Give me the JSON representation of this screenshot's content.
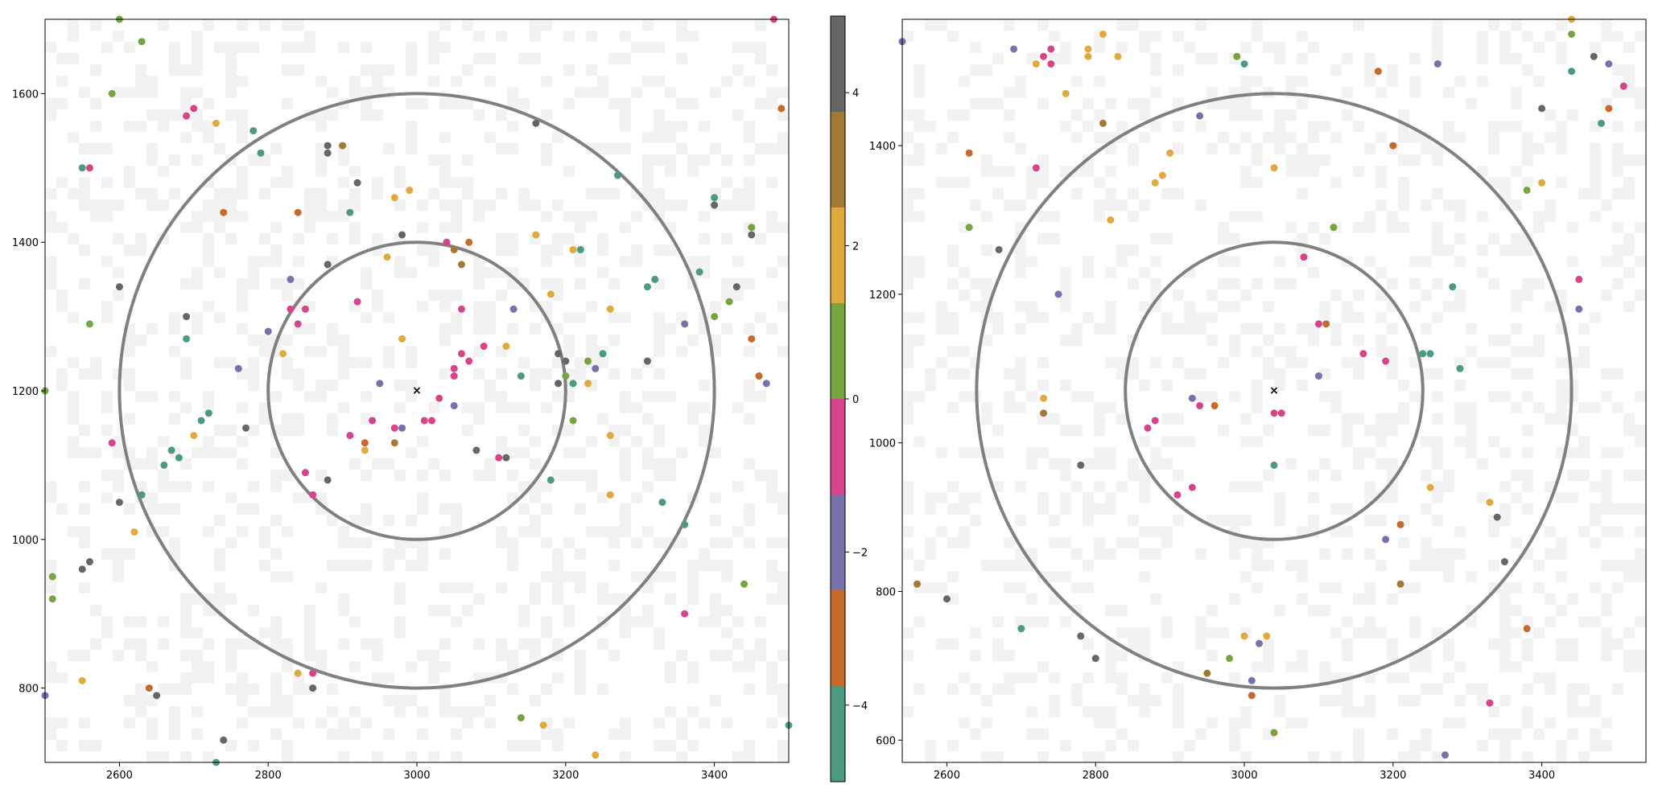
{
  "colors": {
    "background": "#ffffff",
    "raster_cell": "#f2f2f2",
    "circle": "#808080",
    "axis": "#000000"
  },
  "chart_data": [
    {
      "type": "scatter",
      "name": "left-panel",
      "xlim": [
        2500,
        3500
      ],
      "ylim": [
        700,
        1700
      ],
      "xticks": [
        2600,
        2800,
        3000,
        3200,
        3400
      ],
      "yticks": [
        800,
        1000,
        1200,
        1400,
        1600
      ],
      "center": [
        3000,
        1200
      ],
      "center_marker": "×",
      "circles_radius": [
        200,
        400
      ],
      "points": [
        [
          2600,
          1700,
          1
        ],
        [
          2630,
          1670,
          0.5
        ],
        [
          2590,
          1600,
          0.5
        ],
        [
          2690,
          1570,
          -0.5
        ],
        [
          2700,
          1580,
          -0.5
        ],
        [
          2730,
          1560,
          2
        ],
        [
          2550,
          1500,
          -4
        ],
        [
          2560,
          1500,
          -0.5
        ],
        [
          2780,
          1550,
          -4
        ],
        [
          2790,
          1520,
          -4
        ],
        [
          2880,
          1530,
          4
        ],
        [
          2880,
          1520,
          4
        ],
        [
          2900,
          1530,
          3
        ],
        [
          2920,
          1480,
          4
        ],
        [
          2970,
          1460,
          2
        ],
        [
          2990,
          1470,
          2
        ],
        [
          2910,
          1440,
          -4
        ],
        [
          2740,
          1440,
          -3
        ],
        [
          2840,
          1440,
          -3
        ],
        [
          3160,
          1560,
          4
        ],
        [
          3270,
          1490,
          -4
        ],
        [
          3400,
          1460,
          -4
        ],
        [
          3400,
          1450,
          4
        ],
        [
          3450,
          1420,
          0.5
        ],
        [
          3450,
          1410,
          4
        ],
        [
          2600,
          1340,
          4
        ],
        [
          2560,
          1290,
          0.5
        ],
        [
          2690,
          1300,
          4
        ],
        [
          2690,
          1270,
          -4
        ],
        [
          2820,
          1250,
          2
        ],
        [
          2830,
          1350,
          -2
        ],
        [
          2880,
          1370,
          4
        ],
        [
          2980,
          1410,
          4
        ],
        [
          2960,
          1380,
          2
        ],
        [
          3040,
          1400,
          -0.5
        ],
        [
          3050,
          1390,
          3
        ],
        [
          3070,
          1400,
          -3
        ],
        [
          3060,
          1370,
          3
        ],
        [
          3160,
          1410,
          2
        ],
        [
          3210,
          1390,
          2
        ],
        [
          3220,
          1390,
          -4
        ],
        [
          3180,
          1330,
          2
        ],
        [
          3260,
          1310,
          2
        ],
        [
          3310,
          1340,
          -4
        ],
        [
          3320,
          1350,
          -4
        ],
        [
          3380,
          1360,
          -4
        ],
        [
          3430,
          1340,
          4
        ],
        [
          3420,
          1320,
          0.5
        ],
        [
          3400,
          1300,
          0.5
        ],
        [
          3360,
          1290,
          -2
        ],
        [
          3450,
          1270,
          -3
        ],
        [
          3460,
          1220,
          -3
        ],
        [
          3470,
          1210,
          -2
        ],
        [
          2830,
          1310,
          -0.5
        ],
        [
          2850,
          1310,
          -0.5
        ],
        [
          2840,
          1290,
          -0.5
        ],
        [
          2800,
          1280,
          -2
        ],
        [
          2760,
          1230,
          -2
        ],
        [
          2920,
          1320,
          -0.5
        ],
        [
          3060,
          1310,
          -0.5
        ],
        [
          3130,
          1310,
          -2
        ],
        [
          2980,
          1270,
          2
        ],
        [
          3060,
          1250,
          -0.5
        ],
        [
          3090,
          1260,
          -0.5
        ],
        [
          3120,
          1260,
          2
        ],
        [
          3070,
          1240,
          -0.5
        ],
        [
          3050,
          1230,
          -0.5
        ],
        [
          3050,
          1220,
          -0.5
        ],
        [
          3030,
          1190,
          -0.5
        ],
        [
          3050,
          1180,
          -2
        ],
        [
          3140,
          1220,
          -4
        ],
        [
          2950,
          1210,
          -2
        ],
        [
          2940,
          1160,
          -0.5
        ],
        [
          2910,
          1140,
          -0.5
        ],
        [
          2970,
          1150,
          -0.5
        ],
        [
          2980,
          1150,
          -2
        ],
        [
          3010,
          1160,
          -0.5
        ],
        [
          3020,
          1160,
          -0.5
        ],
        [
          2930,
          1130,
          -3
        ],
        [
          2930,
          1120,
          2
        ],
        [
          2970,
          1130,
          3
        ],
        [
          3190,
          1250,
          4
        ],
        [
          3200,
          1240,
          4
        ],
        [
          3200,
          1220,
          0.5
        ],
        [
          3190,
          1210,
          4
        ],
        [
          3210,
          1210,
          -4
        ],
        [
          3230,
          1240,
          0.5
        ],
        [
          3250,
          1250,
          -4
        ],
        [
          3240,
          1230,
          -2
        ],
        [
          3230,
          1210,
          2
        ],
        [
          3210,
          1160,
          0.5
        ],
        [
          3310,
          1240,
          4
        ],
        [
          2500,
          1200,
          0.5
        ],
        [
          2720,
          1170,
          -4
        ],
        [
          2710,
          1160,
          -4
        ],
        [
          2700,
          1140,
          2
        ],
        [
          2770,
          1150,
          4
        ],
        [
          2590,
          1130,
          -0.5
        ],
        [
          2670,
          1120,
          -4
        ],
        [
          2680,
          1110,
          -4
        ],
        [
          2660,
          1100,
          -4
        ],
        [
          2850,
          1090,
          -0.5
        ],
        [
          2880,
          1080,
          4
        ],
        [
          2860,
          1060,
          -0.5
        ],
        [
          3080,
          1120,
          4
        ],
        [
          3110,
          1110,
          -0.5
        ],
        [
          3120,
          1110,
          4
        ],
        [
          3180,
          1080,
          -4
        ],
        [
          3260,
          1140,
          2
        ],
        [
          3260,
          1060,
          2
        ],
        [
          2630,
          1060,
          -4
        ],
        [
          2600,
          1050,
          4
        ],
        [
          2620,
          1010,
          2
        ],
        [
          3330,
          1050,
          -4
        ],
        [
          3360,
          1020,
          -4
        ],
        [
          2510,
          950,
          0.5
        ],
        [
          2550,
          960,
          4
        ],
        [
          2560,
          970,
          4
        ],
        [
          2510,
          920,
          1
        ],
        [
          3440,
          940,
          0.5
        ],
        [
          3360,
          900,
          -0.5
        ],
        [
          2550,
          810,
          2
        ],
        [
          2640,
          800,
          -3
        ],
        [
          2650,
          790,
          4
        ],
        [
          2500,
          790,
          -2
        ],
        [
          2840,
          820,
          2
        ],
        [
          2860,
          820,
          -0.5
        ],
        [
          2860,
          800,
          4
        ],
        [
          2740,
          730,
          4
        ],
        [
          2730,
          700,
          -4
        ],
        [
          3140,
          760,
          0.5
        ],
        [
          3170,
          750,
          2
        ],
        [
          3240,
          710,
          2
        ],
        [
          3500,
          750,
          -4
        ],
        [
          3490,
          1580,
          -3
        ],
        [
          3480,
          1700,
          -0.5
        ]
      ]
    },
    {
      "type": "scatter",
      "name": "right-panel",
      "xlim": [
        2540,
        3540
      ],
      "ylim": [
        570,
        1570
      ],
      "xticks": [
        2600,
        2800,
        3000,
        3200,
        3400
      ],
      "yticks": [
        600,
        800,
        1000,
        1200,
        1400
      ],
      "center": [
        3040,
        1070
      ],
      "center_marker": "×",
      "circles_radius": [
        200,
        400
      ],
      "points": [
        [
          2540,
          1540,
          -2
        ],
        [
          2690,
          1530,
          -2
        ],
        [
          2730,
          1520,
          -0.5
        ],
        [
          2740,
          1530,
          -0.5
        ],
        [
          2740,
          1510,
          -0.5
        ],
        [
          2720,
          1510,
          2
        ],
        [
          2790,
          1530,
          2
        ],
        [
          2790,
          1520,
          2
        ],
        [
          2810,
          1550,
          2
        ],
        [
          2830,
          1520,
          2
        ],
        [
          2990,
          1520,
          0.5
        ],
        [
          3000,
          1510,
          -4
        ],
        [
          3180,
          1500,
          -3
        ],
        [
          3260,
          1510,
          -2
        ],
        [
          3470,
          1520,
          4
        ],
        [
          3490,
          1510,
          -2
        ],
        [
          3510,
          1480,
          -0.5
        ],
        [
          3440,
          1570,
          2
        ],
        [
          3440,
          1550,
          0.5
        ],
        [
          3440,
          1500,
          -4
        ],
        [
          3400,
          1450,
          4
        ],
        [
          3490,
          1450,
          -3
        ],
        [
          3480,
          1430,
          -4
        ],
        [
          2760,
          1470,
          2
        ],
        [
          2940,
          1440,
          -2
        ],
        [
          2810,
          1430,
          3
        ],
        [
          2630,
          1390,
          -3
        ],
        [
          2720,
          1370,
          -0.5
        ],
        [
          2900,
          1390,
          2
        ],
        [
          2890,
          1360,
          2
        ],
        [
          2880,
          1350,
          2
        ],
        [
          3040,
          1370,
          2
        ],
        [
          3200,
          1400,
          -3
        ],
        [
          3400,
          1350,
          2
        ],
        [
          3380,
          1340,
          0.5
        ],
        [
          2630,
          1290,
          0.5
        ],
        [
          2670,
          1260,
          4
        ],
        [
          2820,
          1300,
          2
        ],
        [
          3120,
          1290,
          0.5
        ],
        [
          3080,
          1250,
          -0.5
        ],
        [
          3280,
          1210,
          -4
        ],
        [
          3450,
          1220,
          -0.5
        ],
        [
          3450,
          1180,
          -2
        ],
        [
          2750,
          1200,
          -2
        ],
        [
          3100,
          1160,
          -0.5
        ],
        [
          3110,
          1160,
          -3
        ],
        [
          3160,
          1120,
          -0.5
        ],
        [
          3190,
          1110,
          -0.5
        ],
        [
          3240,
          1120,
          -4
        ],
        [
          3250,
          1120,
          -4
        ],
        [
          3290,
          1100,
          -4
        ],
        [
          3100,
          1090,
          -2
        ],
        [
          2730,
          1060,
          2
        ],
        [
          2730,
          1040,
          3
        ],
        [
          2930,
          1060,
          -2
        ],
        [
          2940,
          1050,
          -0.5
        ],
        [
          2960,
          1050,
          -3
        ],
        [
          2880,
          1030,
          -0.5
        ],
        [
          2870,
          1020,
          -0.5
        ],
        [
          3040,
          1040,
          -0.5
        ],
        [
          3050,
          1040,
          -0.5
        ],
        [
          2780,
          970,
          4
        ],
        [
          3040,
          970,
          -4
        ],
        [
          2910,
          930,
          -0.5
        ],
        [
          2930,
          940,
          -0.5
        ],
        [
          3250,
          940,
          2
        ],
        [
          3330,
          920,
          2
        ],
        [
          3340,
          900,
          4
        ],
        [
          3210,
          890,
          -3
        ],
        [
          3190,
          870,
          -2
        ],
        [
          3350,
          840,
          4
        ],
        [
          2560,
          810,
          3
        ],
        [
          2600,
          790,
          4
        ],
        [
          3210,
          810,
          3
        ],
        [
          3380,
          750,
          -3
        ],
        [
          2700,
          750,
          -4
        ],
        [
          2780,
          740,
          4
        ],
        [
          2800,
          710,
          4
        ],
        [
          3000,
          740,
          2
        ],
        [
          3020,
          730,
          -2
        ],
        [
          3030,
          740,
          2
        ],
        [
          2980,
          710,
          0.5
        ],
        [
          2950,
          690,
          3
        ],
        [
          3010,
          680,
          -2
        ],
        [
          3010,
          660,
          -3
        ],
        [
          3330,
          650,
          -0.5
        ],
        [
          3040,
          610,
          0.5
        ],
        [
          3270,
          580,
          -2
        ]
      ]
    }
  ],
  "colorbar": {
    "vmin": -5,
    "vmax": 5,
    "bands": [
      {
        "from": -5,
        "to": -3.75,
        "color": "#4c9a80"
      },
      {
        "from": -3.75,
        "to": -2.5,
        "color": "#c8692c"
      },
      {
        "from": -2.5,
        "to": -1.25,
        "color": "#7672ab"
      },
      {
        "from": -1.25,
        "to": 0,
        "color": "#d6448a"
      },
      {
        "from": 0,
        "to": 1.25,
        "color": "#76a441"
      },
      {
        "from": 1.25,
        "to": 2.5,
        "color": "#e1aa3c"
      },
      {
        "from": 2.5,
        "to": 3.75,
        "color": "#a47936"
      },
      {
        "from": 3.75,
        "to": 5,
        "color": "#666666"
      }
    ],
    "ticks": [
      -4,
      -2,
      0,
      2,
      4
    ],
    "tick_labels": [
      "−4",
      "−2",
      "0",
      "2",
      "4"
    ]
  }
}
